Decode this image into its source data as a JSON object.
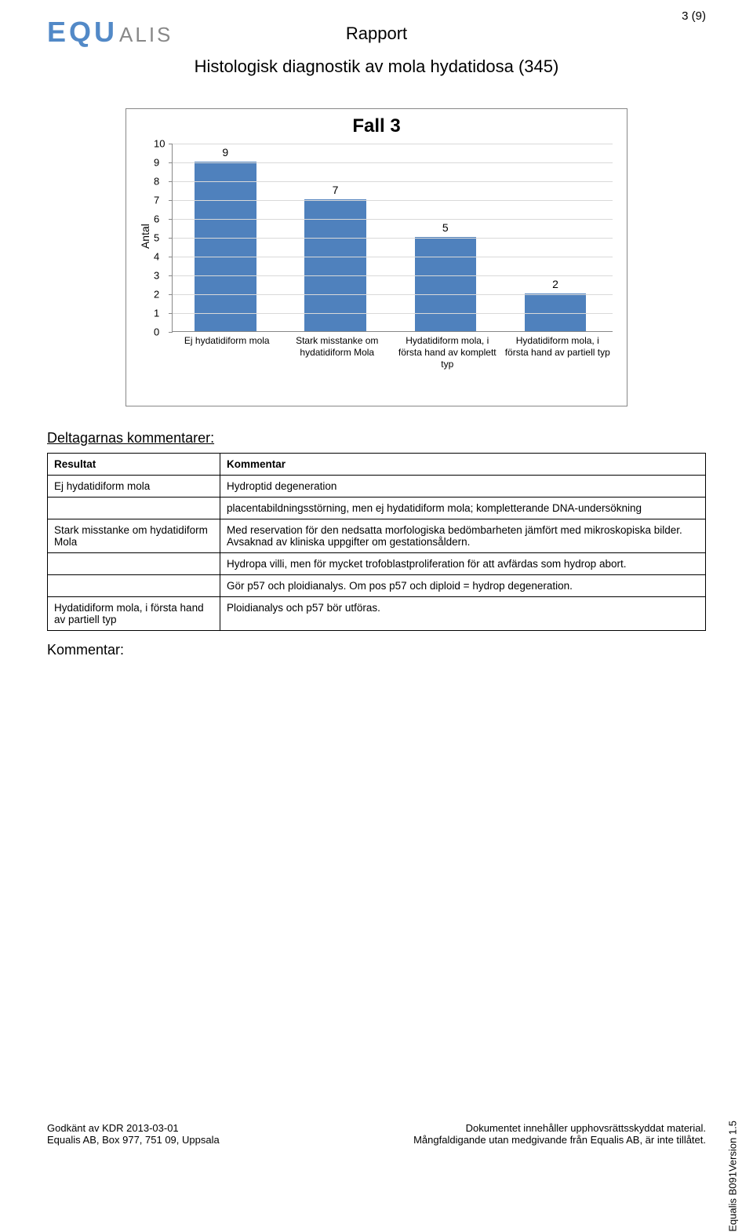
{
  "header": {
    "logo_main": "EQU",
    "logo_sub": "ALIS",
    "rapport": "Rapport",
    "page_num": "3 (9)",
    "subtitle": "Histologisk diagnostik av mola hydatidosa (345)"
  },
  "chart": {
    "title": "Fall 3",
    "y_axis_label": "Antal",
    "ymax": 10,
    "ytick_step": 1,
    "bar_color": "#4f81bd",
    "grid_color": "#d9d9d9",
    "axis_color": "#888888",
    "categories": [
      "Ej hydatidiform mola",
      "Stark misstanke om hydatidiform Mola",
      "Hydatidiform mola, i första hand av komplett typ",
      "Hydatidiform mola, i första hand av partiell typ"
    ],
    "values": [
      9,
      7,
      5,
      2
    ]
  },
  "section": {
    "deltagarnas": "Deltagarnas kommentarer:",
    "kommentar": "Kommentar:"
  },
  "table": {
    "head_left": "Resultat",
    "head_right": "Kommentar",
    "rows": [
      {
        "left": "Ej hydatidiform mola",
        "right": "Hydroptid degeneration"
      },
      {
        "left": "",
        "right": "placentabildningsstörning, men ej hydatidiform mola; kompletterande DNA-undersökning"
      },
      {
        "left": "Stark misstanke om hydatidiform Mola",
        "right": "Med reservation för den nedsatta morfologiska bedömbarheten jämfört med mikroskopiska bilder. Avsaknad av kliniska uppgifter om gestationsåldern."
      },
      {
        "left": "",
        "right": "Hydropa villi, men för mycket trofoblastproliferation för att avfärdas som hydrop abort."
      },
      {
        "left": "",
        "right": "Gör p57 och ploidianalys. Om pos p57 och diploid = hydrop degeneration."
      },
      {
        "left": "Hydatidiform mola, i första hand av partiell typ",
        "right": "Ploidianalys och p57 bör utföras."
      }
    ]
  },
  "footer": {
    "left1": "Godkänt av KDR 2013-03-01",
    "left2": "Equalis AB, Box 977, 751 09, Uppsala",
    "right1": "Dokumentet innehåller upphovsrättsskyddat material.",
    "right2": "Mångfaldigande utan medgivande från Equalis AB, är inte tillåtet.",
    "side": "Equalis  B091Version 1.5"
  }
}
